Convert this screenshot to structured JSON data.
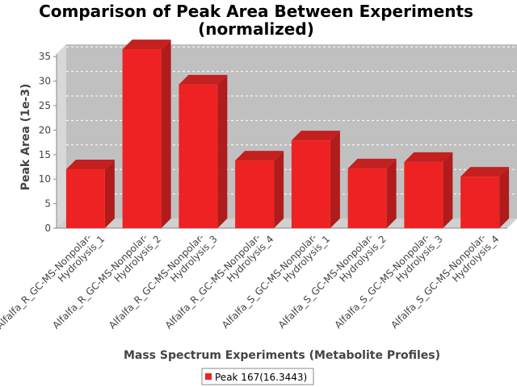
{
  "chart_data": {
    "type": "bar",
    "title": "Comparison of Peak Area Between Experiments",
    "subtitle": "(normalized)",
    "xlabel": "Mass Spectrum Experiments (Metabolite Profiles)",
    "ylabel": "Peak Area (1e-3)",
    "categories": [
      [
        "Alfalfa_R_GC-MS-Nonpolar-",
        "Hydrolysis_1"
      ],
      [
        "Alfalfa_R_GC-MS-Nonpolar-",
        "Hydrolysis_2"
      ],
      [
        "Alfalfa_R_GC-MS-Nonpolar-",
        "Hydrolysis_3"
      ],
      [
        "Alfalfa_R_GC-MS-Nonpolar-",
        "Hydrolysis_4"
      ],
      [
        "Alfalfa_S_GC-MS-Nonpolar-",
        "Hydrolysis_1"
      ],
      [
        "Alfalfa_S_GC-MS-Nonpolar-",
        "Hydrolysis_2"
      ],
      [
        "Alfalfa_S_GC-MS-Nonpolar-",
        "Hydrolysis_3"
      ],
      [
        "Alfalfa_S_GC-MS-Nonpolar-",
        "Hydrolysis_4"
      ]
    ],
    "series": [
      {
        "name": "Peak 167(16.3443)",
        "color": "#ee2222",
        "values": [
          12.0,
          36.5,
          29.3,
          13.8,
          17.9,
          12.2,
          13.5,
          10.5
        ]
      }
    ],
    "ylim": [
      0,
      37.5
    ],
    "yticks": [
      0,
      5,
      10,
      15,
      20,
      25,
      30,
      35
    ],
    "grid": true,
    "legend_position": "bottom",
    "colors": {
      "bar": "#ee2222",
      "plot_bg": "#c0c0c0",
      "grid": "#ffffff"
    }
  }
}
